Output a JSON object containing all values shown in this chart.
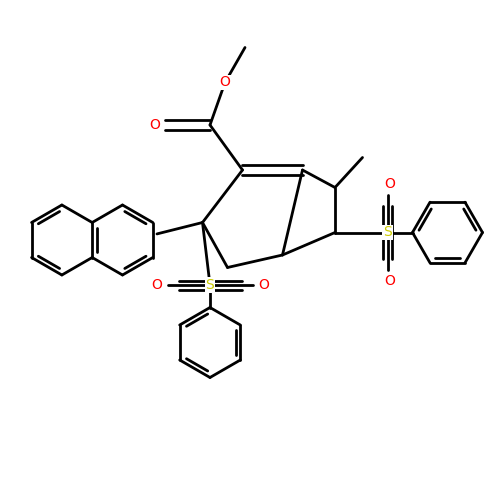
{
  "background_color": "#ffffff",
  "bond_color": "#000000",
  "o_color": "#ff0000",
  "s_color": "#cccc00",
  "figsize": [
    5.0,
    5.0
  ],
  "dpi": 100,
  "lw": 2.0,
  "xlim": [
    0,
    10
  ],
  "ylim": [
    0,
    10
  ]
}
